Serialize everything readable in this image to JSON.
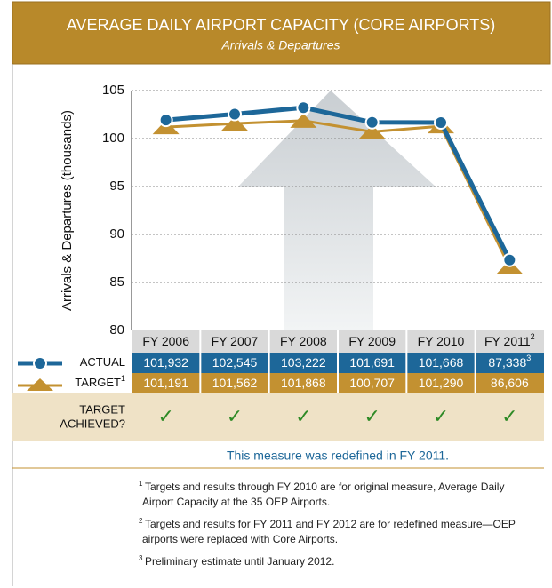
{
  "chart_data": {
    "type": "line",
    "title": "AVERAGE DAILY AIRPORT CAPACITY (CORE AIRPORTS)",
    "subtitle": "Arrivals & Departures",
    "y_label": "Arrivals & Departures (thousands)",
    "categories": [
      "FY 2006",
      "FY 2007",
      "FY 2008",
      "FY 2009",
      "FY 2010",
      "FY 2011"
    ],
    "last_category_mark": "2",
    "ylim": [
      80,
      105
    ],
    "yticks": [
      80,
      85,
      90,
      95,
      100,
      105
    ],
    "grid": true,
    "series": [
      {
        "name": "ACTUAL",
        "color": "#1d6799",
        "values": [
          101.932,
          102.545,
          103.222,
          101.691,
          101.668,
          87.338
        ],
        "value_labels": [
          "101,932",
          "102,545",
          "103,222",
          "101,691",
          "101,668",
          "87,338"
        ],
        "last_label_mark": "3"
      },
      {
        "name": "TARGET",
        "name_mark": "1",
        "color": "#c39131",
        "values": [
          101.191,
          101.562,
          101.868,
          100.707,
          101.29,
          86.606
        ],
        "value_labels": [
          "101,191",
          "101,562",
          "101,868",
          "100,707",
          "101,290",
          "86,606"
        ]
      }
    ],
    "achieved_label": [
      "TARGET",
      "ACHIEVED?"
    ],
    "achieved": [
      "✓",
      "✓",
      "✓",
      "✓",
      "✓",
      "✓"
    ],
    "note": "This measure was redefined in FY 2011.",
    "footnotes": [
      {
        "mark": "1",
        "lines": [
          "Targets and results through FY 2010 are for original measure, Average Daily",
          "Airport Capacity at the 35 OEP Airports."
        ]
      },
      {
        "mark": "2",
        "lines": [
          "Targets and results for FY 2011 and FY 2012 are for redefined measure—OEP",
          "airports were replaced with Core Airports."
        ]
      },
      {
        "mark": "3",
        "lines": [
          "Preliminary estimate until January 2012."
        ]
      }
    ]
  }
}
